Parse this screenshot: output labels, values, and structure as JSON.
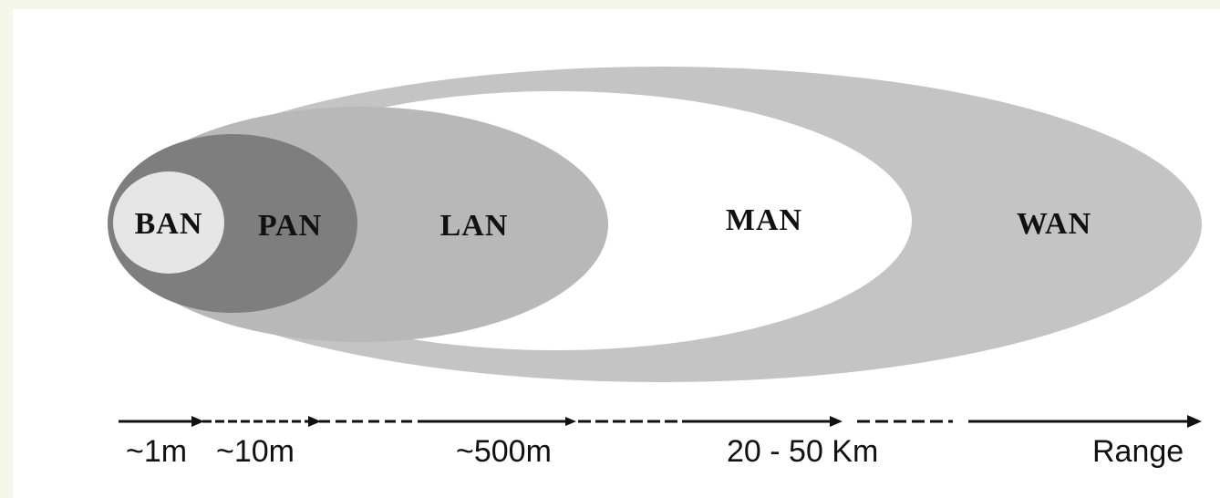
{
  "diagram": {
    "networks": [
      {
        "id": "wan",
        "label": "WAN"
      },
      {
        "id": "man",
        "label": "MAN"
      },
      {
        "id": "lan",
        "label": "LAN"
      },
      {
        "id": "pan",
        "label": "PAN"
      },
      {
        "id": "ban",
        "label": "BAN"
      }
    ],
    "range_labels": [
      {
        "id": "1m",
        "label": "~1m"
      },
      {
        "id": "10m",
        "label": "~10m"
      },
      {
        "id": "500m",
        "label": "~500m"
      },
      {
        "id": "20-50km",
        "label": "20 - 50 Km"
      },
      {
        "id": "range",
        "label": "Range"
      }
    ],
    "colors": {
      "background": "#f4f6ea",
      "panel": "#ffffff",
      "wan": "#c4c4c4",
      "man": "#ffffff",
      "lan": "#b8b8b8",
      "pan": "#7e7e7e",
      "ban": "#e6e6e6",
      "stroke": "#111111"
    }
  }
}
